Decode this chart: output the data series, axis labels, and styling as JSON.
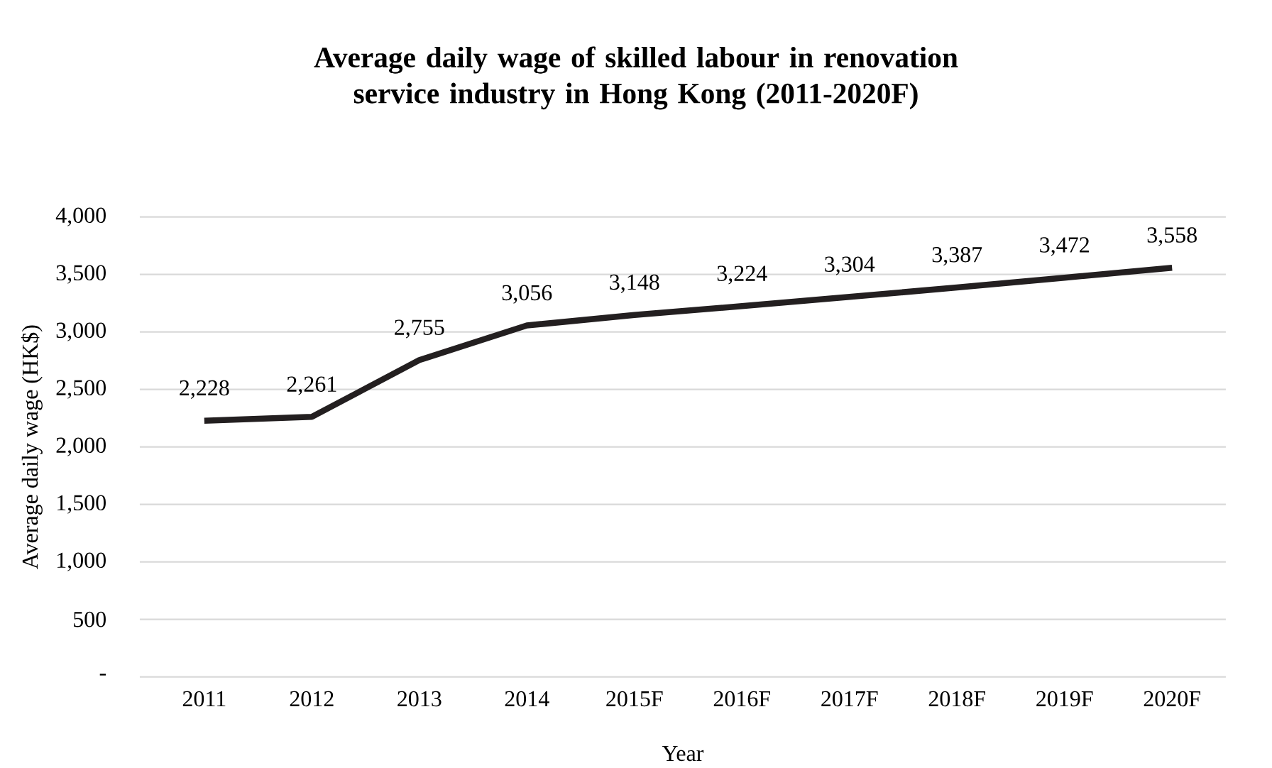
{
  "chart_data": {
    "type": "line",
    "title": "Average daily wage of skilled labour in renovation service industry in Hong Kong (2011-2020F)",
    "xlabel": "Year",
    "ylabel": "Average daily wage (HK$)",
    "categories": [
      "2011",
      "2012",
      "2013",
      "2014",
      "2015F",
      "2016F",
      "2017F",
      "2018F",
      "2019F",
      "2020F"
    ],
    "series": [
      {
        "color": "#231f20",
        "values": [
          2228,
          2261,
          2755,
          3056,
          3148,
          3224,
          3304,
          3387,
          3472,
          3558
        ],
        "value_labels": [
          "2,228",
          "2,261",
          "2,755",
          "3,056",
          "3,148",
          "3,224",
          "3,304",
          "3,387",
          "3,472",
          "3,558"
        ]
      }
    ],
    "ylim": [
      0,
      4000
    ],
    "yticks": [
      {
        "value": 0,
        "label": "-"
      },
      500,
      {
        "value": 1000,
        "label": "1,000"
      },
      {
        "value": 1500,
        "label": "1,500"
      },
      {
        "value": 2000,
        "label": "2,000"
      },
      {
        "value": 2500,
        "label": "2,500"
      },
      {
        "value": 3000,
        "label": "3,000"
      },
      {
        "value": 3500,
        "label": "3,500"
      },
      {
        "value": 4000,
        "label": "4,000"
      }
    ],
    "grid": "y",
    "marker": "none",
    "line_style": "solid"
  }
}
